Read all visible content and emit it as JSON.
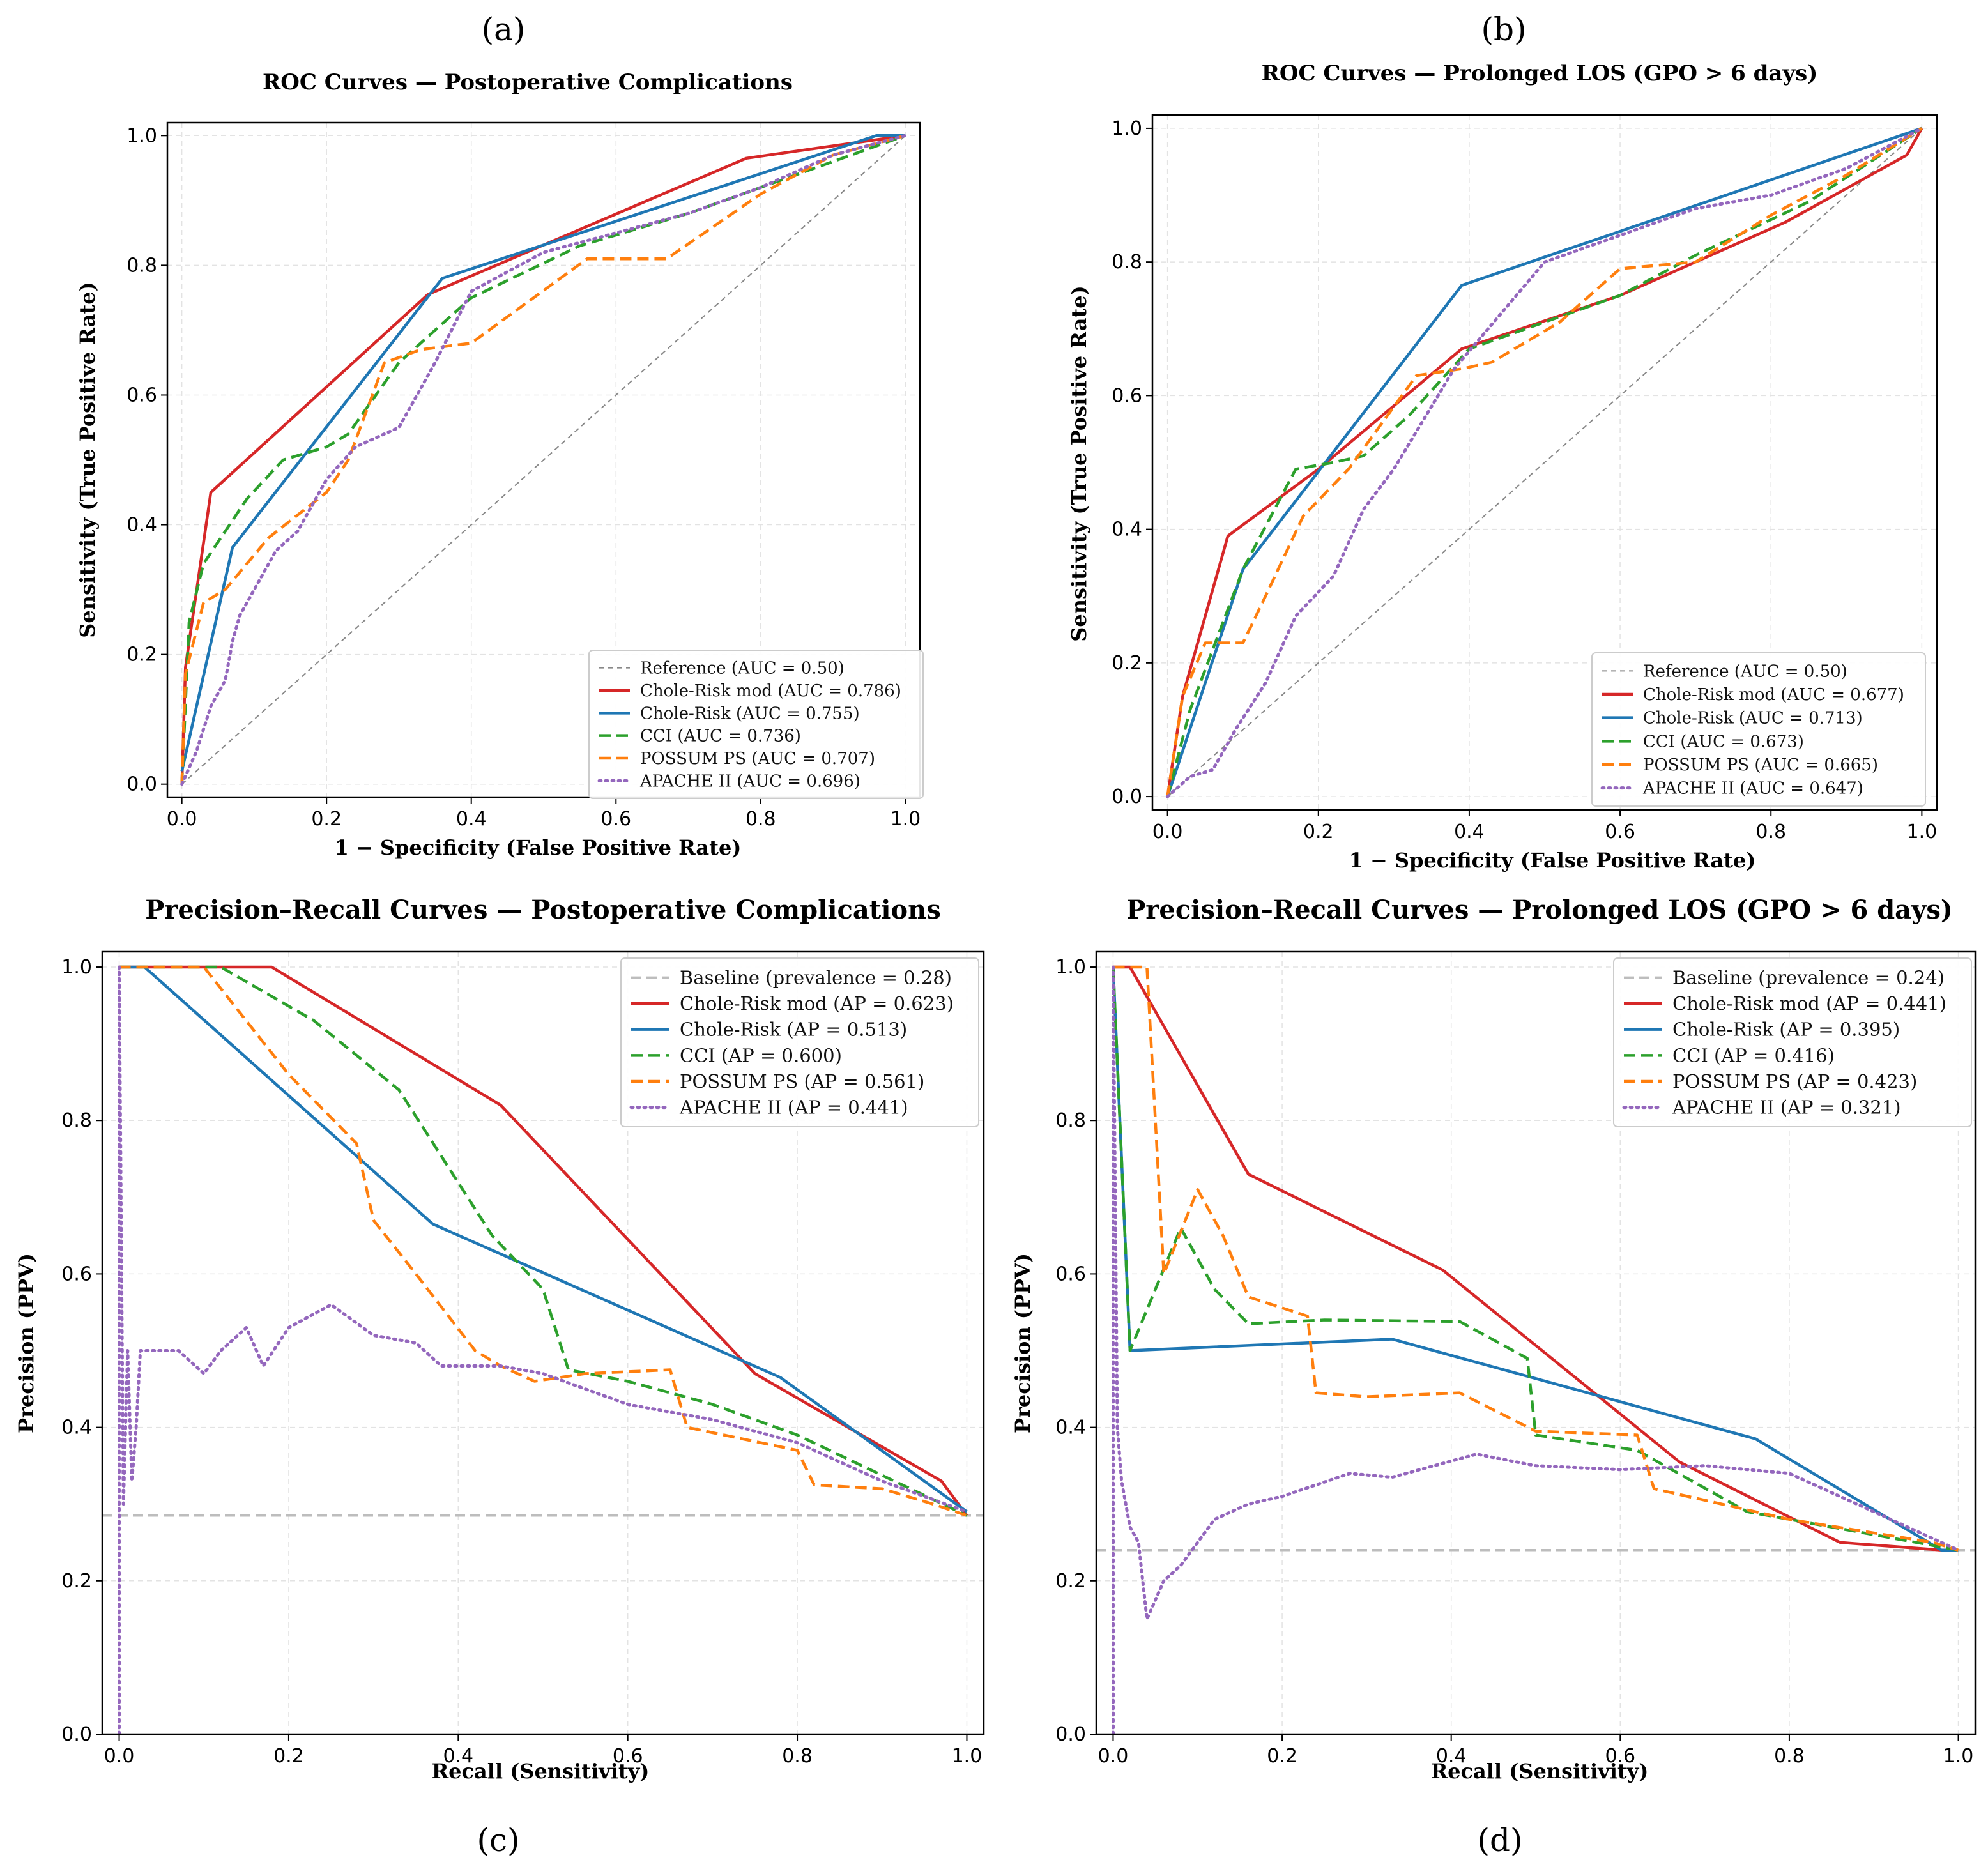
{
  "panel_letters": [
    "(a)",
    "(b)",
    "(c)",
    "(d)"
  ],
  "colors": {
    "reference": "#888888",
    "chole_risk_mod": "#d62728",
    "chole_risk": "#1f77b4",
    "cci": "#2ca02c",
    "possum": "#ff7f0e",
    "apache": "#9467bd",
    "baseline": "#bdbdbd",
    "grid": "#e3e3e3"
  },
  "chart_data": [
    {
      "type": "line",
      "panel": "(a)",
      "title": "ROC Curves — Postoperative Complications",
      "xlabel": "1 − Specificity (False Positive Rate)",
      "ylabel": "Sensitivity (True Positive Rate)",
      "xlim": [
        0,
        1
      ],
      "ylim": [
        0,
        1
      ],
      "xticks": [
        "0.0",
        "0.2",
        "0.4",
        "0.6",
        "0.8",
        "1.0"
      ],
      "yticks": [
        "0.0",
        "0.2",
        "0.4",
        "0.6",
        "0.8",
        "1.0"
      ],
      "grid": true,
      "legend_position": "lower right",
      "series": [
        {
          "name": "Reference (AUC = 0.50)",
          "style": "dashed-thin",
          "color_key": "reference",
          "x": [
            0,
            1
          ],
          "y": [
            0,
            1
          ]
        },
        {
          "name": "Chole-Risk mod (AUC = 0.786)",
          "style": "solid",
          "color_key": "chole_risk_mod",
          "x": [
            0,
            0.005,
            0.04,
            0.34,
            0.78,
            1.0
          ],
          "y": [
            0,
            0.18,
            0.45,
            0.755,
            0.965,
            1.0
          ]
        },
        {
          "name": "Chole-Risk (AUC = 0.755)",
          "style": "solid",
          "color_key": "chole_risk",
          "x": [
            0,
            0.07,
            0.36,
            0.96,
            1.0
          ],
          "y": [
            0.02,
            0.365,
            0.78,
            1.0,
            1.0
          ]
        },
        {
          "name": "CCI (AUC = 0.736)",
          "style": "dashed",
          "color_key": "cci",
          "x": [
            0,
            0.01,
            0.03,
            0.09,
            0.14,
            0.2,
            0.23,
            0.3,
            0.4,
            0.55,
            0.7,
            0.85,
            1.0
          ],
          "y": [
            0,
            0.25,
            0.34,
            0.44,
            0.5,
            0.52,
            0.54,
            0.65,
            0.75,
            0.83,
            0.88,
            0.94,
            1.0
          ]
        },
        {
          "name": "POSSUM PS (AUC = 0.707)",
          "style": "dashed",
          "color_key": "possum",
          "x": [
            0,
            0.005,
            0.03,
            0.06,
            0.12,
            0.2,
            0.23,
            0.28,
            0.33,
            0.4,
            0.56,
            0.67,
            0.8,
            0.9,
            1.0
          ],
          "y": [
            0,
            0.17,
            0.28,
            0.3,
            0.38,
            0.45,
            0.5,
            0.65,
            0.67,
            0.68,
            0.81,
            0.81,
            0.91,
            0.97,
            1.0
          ]
        },
        {
          "name": "APACHE II (AUC = 0.696)",
          "style": "dotted",
          "color_key": "apache",
          "x": [
            0,
            0.02,
            0.04,
            0.06,
            0.07,
            0.08,
            0.1,
            0.13,
            0.16,
            0.2,
            0.24,
            0.3,
            0.35,
            0.4,
            0.5,
            0.6,
            0.7,
            0.8,
            0.9,
            1.0
          ],
          "y": [
            0,
            0.05,
            0.12,
            0.16,
            0.22,
            0.26,
            0.3,
            0.36,
            0.39,
            0.47,
            0.52,
            0.55,
            0.65,
            0.76,
            0.82,
            0.85,
            0.88,
            0.92,
            0.97,
            1.0
          ]
        }
      ]
    },
    {
      "type": "line",
      "panel": "(b)",
      "title": "ROC Curves — Prolonged LOS (GPO > 6 days)",
      "xlabel": "1 − Specificity (False Positive Rate)",
      "ylabel": "Sensitivity (True Positive Rate)",
      "xlim": [
        0,
        1
      ],
      "ylim": [
        0,
        1
      ],
      "xticks": [
        "0.0",
        "0.2",
        "0.4",
        "0.6",
        "0.8",
        "1.0"
      ],
      "yticks": [
        "0.0",
        "0.2",
        "0.4",
        "0.6",
        "0.8",
        "1.0"
      ],
      "grid": true,
      "legend_position": "lower right",
      "series": [
        {
          "name": "Reference (AUC = 0.50)",
          "style": "dashed-thin",
          "color_key": "reference",
          "x": [
            0,
            1
          ],
          "y": [
            0,
            1
          ]
        },
        {
          "name": "Chole-Risk mod (AUC = 0.677)",
          "style": "solid",
          "color_key": "chole_risk_mod",
          "x": [
            0,
            0.02,
            0.08,
            0.2,
            0.39,
            0.6,
            0.82,
            0.98,
            1.0
          ],
          "y": [
            0,
            0.15,
            0.39,
            0.49,
            0.67,
            0.75,
            0.86,
            0.96,
            1.0
          ]
        },
        {
          "name": "Chole-Risk (AUC = 0.713)",
          "style": "solid",
          "color_key": "chole_risk",
          "x": [
            0,
            0.1,
            0.39,
            1.0
          ],
          "y": [
            0,
            0.34,
            0.765,
            1.0
          ]
        },
        {
          "name": "CCI (AUC = 0.673)",
          "style": "dashed",
          "color_key": "cci",
          "x": [
            0,
            0.03,
            0.1,
            0.17,
            0.22,
            0.26,
            0.32,
            0.4,
            0.5,
            0.6,
            0.7,
            0.85,
            1.0
          ],
          "y": [
            0,
            0.13,
            0.34,
            0.49,
            0.5,
            0.51,
            0.57,
            0.67,
            0.71,
            0.75,
            0.81,
            0.89,
            1.0
          ]
        },
        {
          "name": "POSSUM PS (AUC = 0.665)",
          "style": "dashed",
          "color_key": "possum",
          "x": [
            0,
            0.02,
            0.05,
            0.1,
            0.13,
            0.18,
            0.24,
            0.33,
            0.39,
            0.43,
            0.52,
            0.6,
            0.7,
            0.8,
            0.9,
            1.0
          ],
          "y": [
            0,
            0.15,
            0.23,
            0.23,
            0.3,
            0.42,
            0.49,
            0.63,
            0.64,
            0.65,
            0.71,
            0.79,
            0.8,
            0.87,
            0.93,
            1.0
          ]
        },
        {
          "name": "APACHE II (AUC = 0.647)",
          "style": "dotted",
          "color_key": "apache",
          "x": [
            0,
            0.03,
            0.06,
            0.09,
            0.13,
            0.17,
            0.22,
            0.26,
            0.3,
            0.38,
            0.5,
            0.6,
            0.7,
            0.8,
            0.9,
            1.0
          ],
          "y": [
            0,
            0.03,
            0.04,
            0.1,
            0.17,
            0.27,
            0.33,
            0.43,
            0.49,
            0.64,
            0.8,
            0.84,
            0.88,
            0.9,
            0.94,
            1.0
          ]
        }
      ]
    },
    {
      "type": "line",
      "panel": "(c)",
      "title": "Precision–Recall Curves — Postoperative Complications",
      "xlabel": "Recall (Sensitivity)",
      "ylabel": "Precision (PPV)",
      "xlim": [
        0,
        1
      ],
      "ylim": [
        0,
        1
      ],
      "xticks": [
        "0.0",
        "0.2",
        "0.4",
        "0.6",
        "0.8",
        "1.0"
      ],
      "yticks": [
        "0.0",
        "0.2",
        "0.4",
        "0.6",
        "0.8",
        "1.0"
      ],
      "grid": true,
      "legend_position": "upper right",
      "series": [
        {
          "name": "Baseline (prevalence = 0.28)",
          "style": "dashed-baseline",
          "color_key": "baseline",
          "x": [
            -0.02,
            1.02
          ],
          "y": [
            0.285,
            0.285
          ]
        },
        {
          "name": "Chole-Risk mod (AP = 0.623)",
          "style": "solid",
          "color_key": "chole_risk_mod",
          "x": [
            0,
            0.18,
            0.45,
            0.75,
            0.97,
            1.0
          ],
          "y": [
            1.0,
            1.0,
            0.82,
            0.47,
            0.33,
            0.285
          ]
        },
        {
          "name": "Chole-Risk (AP = 0.513)",
          "style": "solid",
          "color_key": "chole_risk",
          "x": [
            0,
            0.03,
            0.37,
            0.78,
            1.0
          ],
          "y": [
            1.0,
            1.0,
            0.665,
            0.465,
            0.29
          ]
        },
        {
          "name": "CCI (AP = 0.600)",
          "style": "dashed",
          "color_key": "cci",
          "x": [
            0,
            0.12,
            0.23,
            0.33,
            0.44,
            0.5,
            0.53,
            0.6,
            0.7,
            0.8,
            1.0
          ],
          "y": [
            1.0,
            1.0,
            0.93,
            0.84,
            0.65,
            0.58,
            0.475,
            0.46,
            0.43,
            0.39,
            0.285
          ]
        },
        {
          "name": "POSSUM PS (AP = 0.561)",
          "style": "dashed",
          "color_key": "possum",
          "x": [
            0,
            0.1,
            0.2,
            0.28,
            0.3,
            0.35,
            0.42,
            0.45,
            0.49,
            0.55,
            0.65,
            0.67,
            0.8,
            0.82,
            0.9,
            0.96,
            1.0
          ],
          "y": [
            1.0,
            1.0,
            0.86,
            0.77,
            0.67,
            0.6,
            0.5,
            0.48,
            0.46,
            0.47,
            0.475,
            0.4,
            0.37,
            0.325,
            0.32,
            0.3,
            0.285
          ]
        },
        {
          "name": "APACHE II (AP = 0.441)",
          "style": "dotted",
          "color_key": "apache",
          "x": [
            0,
            0.0,
            0.005,
            0.01,
            0.015,
            0.02,
            0.025,
            0.03,
            0.05,
            0.07,
            0.1,
            0.12,
            0.15,
            0.17,
            0.2,
            0.25,
            0.3,
            0.35,
            0.38,
            0.45,
            0.5,
            0.55,
            0.6,
            0.7,
            0.8,
            0.9,
            1.0
          ],
          "y": [
            0.0,
            1.0,
            0.3,
            0.5,
            0.33,
            0.4,
            0.5,
            0.5,
            0.5,
            0.5,
            0.47,
            0.5,
            0.53,
            0.48,
            0.53,
            0.56,
            0.52,
            0.51,
            0.48,
            0.48,
            0.47,
            0.45,
            0.43,
            0.41,
            0.38,
            0.33,
            0.29
          ]
        }
      ]
    },
    {
      "type": "line",
      "panel": "(d)",
      "title": "Precision–Recall Curves — Prolonged LOS (GPO > 6 days)",
      "xlabel": "Recall (Sensitivity)",
      "ylabel": "Precision (PPV)",
      "xlim": [
        0,
        1
      ],
      "ylim": [
        0,
        1
      ],
      "xticks": [
        "0.0",
        "0.2",
        "0.4",
        "0.6",
        "0.8",
        "1.0"
      ],
      "yticks": [
        "0.0",
        "0.2",
        "0.4",
        "0.6",
        "0.8",
        "1.0"
      ],
      "grid": true,
      "legend_position": "upper right",
      "series": [
        {
          "name": "Baseline (prevalence = 0.24)",
          "style": "dashed-baseline",
          "color_key": "baseline",
          "x": [
            -0.02,
            1.02
          ],
          "y": [
            0.24,
            0.24
          ]
        },
        {
          "name": "Chole-Risk mod (AP = 0.441)",
          "style": "solid",
          "color_key": "chole_risk_mod",
          "x": [
            0,
            0.02,
            0.16,
            0.39,
            0.67,
            0.86,
            0.98,
            1.0
          ],
          "y": [
            1.0,
            1.0,
            0.73,
            0.605,
            0.355,
            0.25,
            0.24,
            0.24
          ]
        },
        {
          "name": "Chole-Risk (AP = 0.395)",
          "style": "solid",
          "color_key": "chole_risk",
          "x": [
            0,
            0.02,
            0.33,
            0.76,
            0.98,
            1.0
          ],
          "y": [
            1.0,
            0.5,
            0.515,
            0.385,
            0.24,
            0.24
          ]
        },
        {
          "name": "CCI (AP = 0.416)",
          "style": "dashed",
          "color_key": "cci",
          "x": [
            0,
            0.02,
            0.08,
            0.12,
            0.16,
            0.25,
            0.41,
            0.49,
            0.5,
            0.62,
            0.75,
            0.85,
            1.0
          ],
          "y": [
            1.0,
            0.5,
            0.66,
            0.58,
            0.535,
            0.54,
            0.538,
            0.49,
            0.39,
            0.37,
            0.29,
            0.27,
            0.24
          ]
        },
        {
          "name": "POSSUM PS (AP = 0.423)",
          "style": "dashed",
          "color_key": "possum",
          "x": [
            0,
            0.04,
            0.06,
            0.1,
            0.13,
            0.16,
            0.23,
            0.24,
            0.3,
            0.41,
            0.5,
            0.62,
            0.64,
            0.8,
            0.97,
            1.0
          ],
          "y": [
            1.0,
            1.0,
            0.6,
            0.71,
            0.65,
            0.57,
            0.545,
            0.445,
            0.44,
            0.445,
            0.395,
            0.39,
            0.32,
            0.28,
            0.25,
            0.24
          ]
        },
        {
          "name": "APACHE II (AP = 0.321)",
          "style": "dotted",
          "color_key": "apache",
          "x": [
            0,
            0.0,
            0.005,
            0.01,
            0.015,
            0.02,
            0.03,
            0.04,
            0.06,
            0.08,
            0.12,
            0.16,
            0.2,
            0.28,
            0.33,
            0.43,
            0.5,
            0.6,
            0.7,
            0.8,
            0.9,
            1.0
          ],
          "y": [
            0.0,
            1.0,
            0.4,
            0.33,
            0.3,
            0.27,
            0.25,
            0.15,
            0.2,
            0.22,
            0.28,
            0.3,
            0.31,
            0.34,
            0.335,
            0.365,
            0.35,
            0.345,
            0.35,
            0.34,
            0.29,
            0.24
          ]
        }
      ]
    }
  ]
}
